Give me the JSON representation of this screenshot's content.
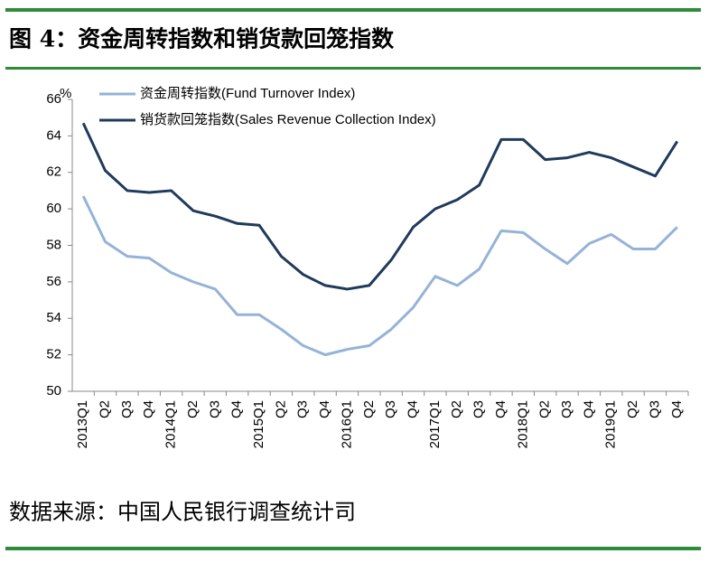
{
  "title": "图 4：资金周转指数和销货款回笼指数",
  "source": "数据来源：中国人民银行调查统计司",
  "chart_data": {
    "type": "line",
    "y_unit": "%",
    "categories": [
      "2013Q1",
      "Q2",
      "Q3",
      "Q4",
      "2014Q1",
      "Q2",
      "Q3",
      "Q4",
      "2015Q1",
      "Q2",
      "Q3",
      "Q4",
      "2016Q1",
      "Q2",
      "Q3",
      "Q4",
      "2017Q1",
      "Q2",
      "Q3",
      "Q4",
      "2018Q1",
      "Q2",
      "Q3",
      "Q4",
      "2019Q1",
      "Q2",
      "Q3",
      "Q4"
    ],
    "series": [
      {
        "name": "资金周转指数(Fund Turnover Index)",
        "color": "#95b3d7",
        "values": [
          60.7,
          58.2,
          57.4,
          57.3,
          56.5,
          56.0,
          55.6,
          54.2,
          54.2,
          53.4,
          52.5,
          52.0,
          52.3,
          52.5,
          53.4,
          54.6,
          56.3,
          55.8,
          56.7,
          58.8,
          58.7,
          57.8,
          57.0,
          58.1,
          58.6,
          57.8,
          57.8,
          59.0
        ]
      },
      {
        "name": "销货款回笼指数(Sales Revenue Collection Index)",
        "color": "#1f3a5a",
        "values": [
          64.7,
          62.1,
          61.0,
          60.9,
          61.0,
          59.9,
          59.6,
          59.2,
          59.1,
          57.4,
          56.4,
          55.8,
          55.6,
          55.8,
          57.2,
          59.0,
          60.0,
          60.5,
          61.3,
          63.8,
          63.8,
          62.7,
          62.8,
          63.1,
          62.8,
          62.3,
          61.8,
          63.7
        ]
      }
    ],
    "ylim": [
      50,
      66
    ],
    "yticks": [
      50,
      52,
      54,
      56,
      58,
      60,
      62,
      64,
      66
    ],
    "legend": "upper left",
    "grid": false
  }
}
